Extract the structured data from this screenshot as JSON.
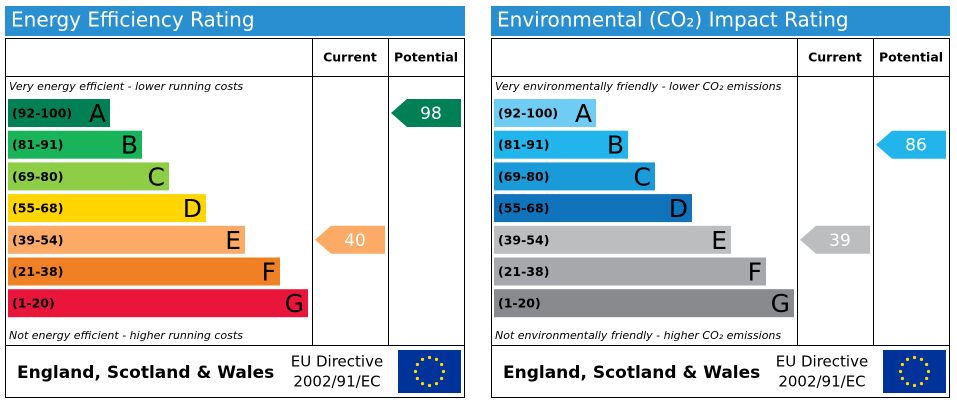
{
  "chart_data": [
    {
      "type": "epc",
      "title": "Energy Efficiency Rating",
      "columns": [
        "Current",
        "Potential"
      ],
      "top_note": "Very energy efficient - lower running costs",
      "bottom_note": "Not energy efficient - higher running costs",
      "bands": [
        {
          "range": "(92-100)",
          "letter": "A",
          "color": "#008054"
        },
        {
          "range": "(81-91)",
          "letter": "B",
          "color": "#19b459"
        },
        {
          "range": "(69-80)",
          "letter": "C",
          "color": "#8dce46"
        },
        {
          "range": "(55-68)",
          "letter": "D",
          "color": "#ffd500"
        },
        {
          "range": "(39-54)",
          "letter": "E",
          "color": "#fcaa65"
        },
        {
          "range": "(21-38)",
          "letter": "F",
          "color": "#ef8023"
        },
        {
          "range": "(1-20)",
          "letter": "G",
          "color": "#e9153b"
        }
      ],
      "current": 40,
      "potential": 98,
      "footer": {
        "region": "England, Scotland & Wales",
        "directive": "EU Directive",
        "code": "2002/91/EC"
      }
    },
    {
      "type": "epc",
      "title": "Environmental (CO₂) Impact Rating",
      "columns": [
        "Current",
        "Potential"
      ],
      "top_note": "Very environmentally friendly - lower CO₂ emissions",
      "bottom_note": "Not environmentally friendly - higher CO₂ emissions",
      "bands": [
        {
          "range": "(92-100)",
          "letter": "A",
          "color": "#6fcdf4"
        },
        {
          "range": "(81-91)",
          "letter": "B",
          "color": "#22b5eb"
        },
        {
          "range": "(69-80)",
          "letter": "C",
          "color": "#1a9ad6"
        },
        {
          "range": "(55-68)",
          "letter": "D",
          "color": "#1173bb"
        },
        {
          "range": "(39-54)",
          "letter": "E",
          "color": "#bbbdbf"
        },
        {
          "range": "(21-38)",
          "letter": "F",
          "color": "#a6a8ab"
        },
        {
          "range": "(1-20)",
          "letter": "G",
          "color": "#888a8d"
        }
      ],
      "current": 39,
      "potential": 86,
      "footer": {
        "region": "England, Scotland & Wales",
        "directive": "EU Directive",
        "code": "2002/91/EC"
      }
    }
  ]
}
